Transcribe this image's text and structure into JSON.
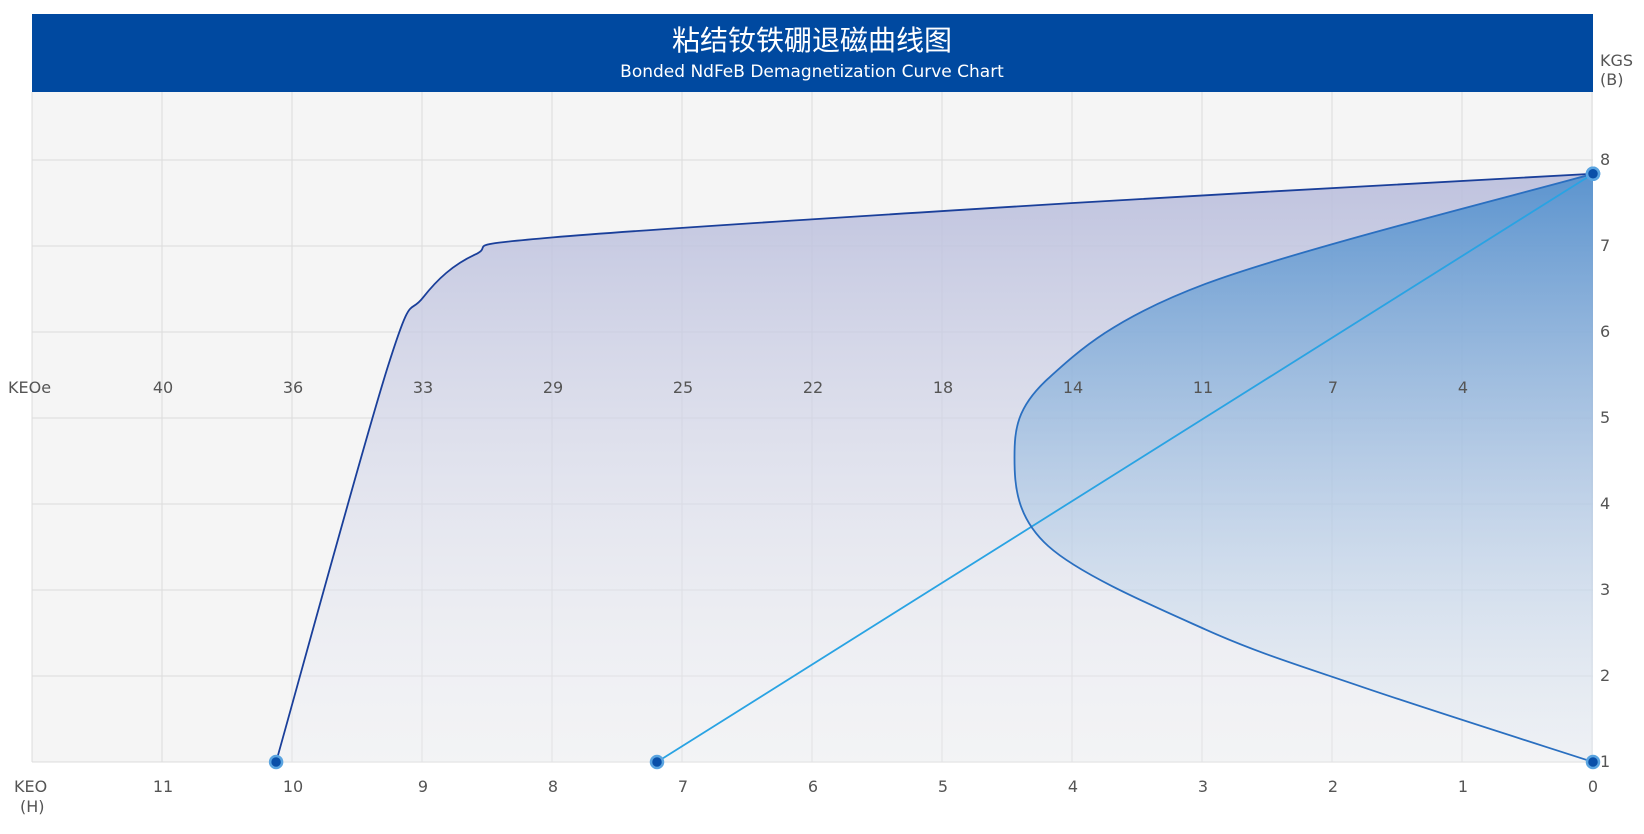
{
  "chart_data": {
    "type": "line",
    "title": "粘结钕铁硼退磁曲线图",
    "subtitle": "Bonded NdFeB Demagnetization Curve Chart",
    "xlabel": "KEO (H)",
    "xlabel_lines": [
      "KEO",
      "(H)"
    ],
    "x2label": "KEOe",
    "ylabel_lines": [
      "KGS",
      "(B)"
    ],
    "x_ticks": [
      "11",
      "10",
      "9",
      "8",
      "7",
      "6",
      "5",
      "4",
      "3",
      "2",
      "1",
      "0"
    ],
    "x_tick_values": [
      11,
      10,
      9,
      8,
      7,
      6,
      5,
      4,
      3,
      2,
      1,
      0
    ],
    "x2_ticks": [
      "40",
      "36",
      "33",
      "29",
      "25",
      "22",
      "18",
      "14",
      "11",
      "7",
      "4"
    ],
    "y_ticks": [
      "1",
      "2",
      "3",
      "4",
      "5",
      "6",
      "7",
      "8"
    ],
    "xlim": [
      12,
      0
    ],
    "ylim": [
      1,
      8.8
    ],
    "grid": true,
    "colors": {
      "header": "#0049a0",
      "curve1": "#1a3f9a",
      "curve2": "#29a3e3",
      "curve3": "#2a6fc0",
      "grid": "#dcdcdc",
      "bg": "#f5f5f5"
    },
    "series": [
      {
        "points": [
          [
            10.13,
            1
          ],
          [
            9.27,
            5.6
          ],
          [
            9.0,
            6.4
          ],
          [
            8.6,
            6.9
          ],
          [
            8.0,
            7.1
          ],
          [
            4,
            7.5
          ],
          [
            0,
            7.84
          ]
        ]
      },
      {
        "points": [
          [
            7.2,
            1
          ],
          [
            0,
            7.84
          ]
        ]
      },
      {
        "points": [
          [
            0,
            7.84
          ],
          [
            2.98,
            6.56
          ],
          [
            4.19,
            5.46
          ],
          [
            4.45,
            4.54
          ],
          [
            4.19,
            3.51
          ],
          [
            2.98,
            2.54
          ],
          [
            1.77,
            1.87
          ],
          [
            0,
            1
          ]
        ]
      }
    ]
  }
}
